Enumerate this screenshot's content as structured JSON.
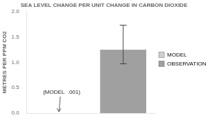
{
  "chart_data": {
    "type": "bar",
    "title": "SEA LEVEL CHANGE PER UNIT CHANGE IN CARBON DIOXIDE",
    "ylabel": "METRES PER PPM CO2",
    "categories": [
      "MODEL",
      "OBSERVATIONS"
    ],
    "values": [
      0.001,
      1.25
    ],
    "colors": [
      "#d0d0d0",
      "#a0a0a0"
    ],
    "error_lower": [
      null,
      0.28
    ],
    "error_upper": [
      null,
      0.48
    ],
    "ylim": [
      0.0,
      2.0
    ],
    "yticks": [
      {
        "value": 0,
        "label": "0.0"
      },
      0.5,
      {
        "value": 1,
        "label": "1.0"
      },
      1.5,
      {
        "value": 2,
        "label": "2.0"
      }
    ],
    "annotations": [
      {
        "text": "(MODEL  .001)",
        "category": "MODEL"
      }
    ],
    "legend": "right",
    "grid": false,
    "tick_labels": "y"
  }
}
